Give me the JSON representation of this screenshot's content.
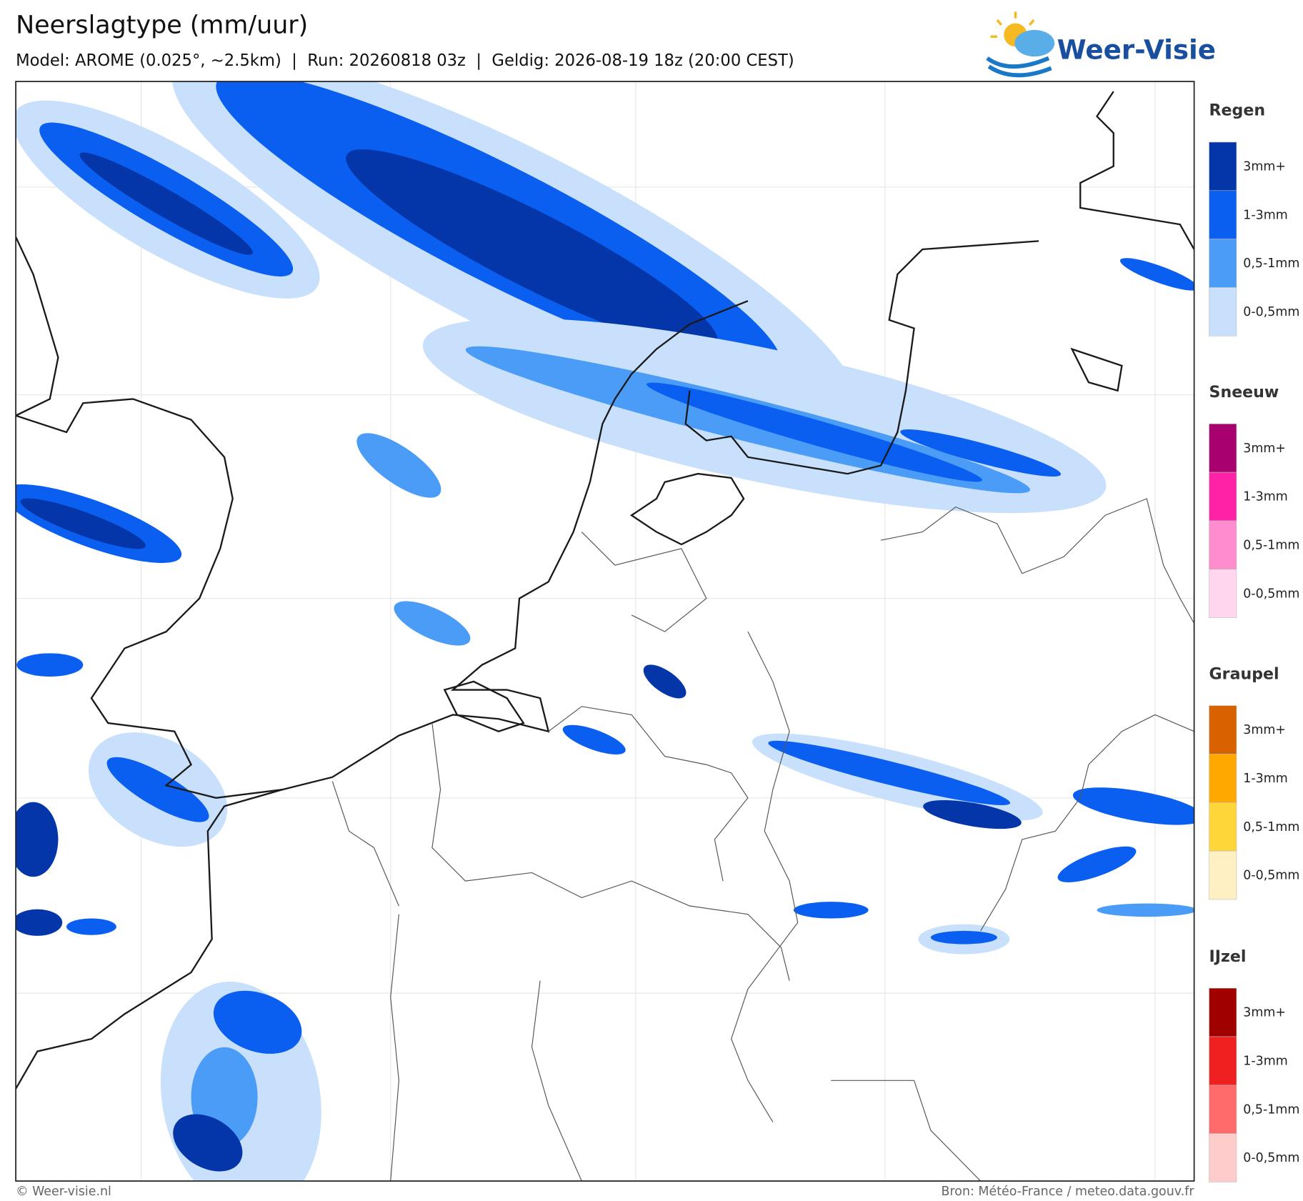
{
  "header": {
    "title": "Neerslagtype (mm/uur)",
    "subtitle": "Model: AROME (0.025°, ~2.5km)  |  Run: 20260818 03z  |  Geldig: 2026-08-19 18z (20:00 CEST)"
  },
  "logo": {
    "text": "Weer-Visie"
  },
  "legend": [
    {
      "title": "Regen",
      "items": [
        {
          "label": "3mm+",
          "color": "#0536a9"
        },
        {
          "label": "1-3mm",
          "color": "#0a5ff0"
        },
        {
          "label": "0,5-1mm",
          "color": "#4a9cf7"
        },
        {
          "label": "0-0,5mm",
          "color": "#c8e0fb"
        }
      ]
    },
    {
      "title": "Sneeuw",
      "items": [
        {
          "label": "3mm+",
          "color": "#a8006e"
        },
        {
          "label": "1-3mm",
          "color": "#ff22a6"
        },
        {
          "label": "0,5-1mm",
          "color": "#ff8ccc"
        },
        {
          "label": "0-0,5mm",
          "color": "#ffd6ec"
        }
      ]
    },
    {
      "title": "Graupel",
      "items": [
        {
          "label": "3mm+",
          "color": "#d96200"
        },
        {
          "label": "1-3mm",
          "color": "#ffa800"
        },
        {
          "label": "0,5-1mm",
          "color": "#ffd63a"
        },
        {
          "label": "0-0,5mm",
          "color": "#fff0c4"
        }
      ]
    },
    {
      "title": "IJzel",
      "items": [
        {
          "label": "3mm+",
          "color": "#a00000"
        },
        {
          "label": "1-3mm",
          "color": "#ee2020"
        },
        {
          "label": "0,5-1mm",
          "color": "#ff6a6a"
        },
        {
          "label": "0-0,5mm",
          "color": "#ffcccc"
        }
      ]
    }
  ],
  "footer": {
    "left": "© Weer-visie.nl",
    "right": "Bron: Météo-France / meteo.data.gouv.fr"
  }
}
